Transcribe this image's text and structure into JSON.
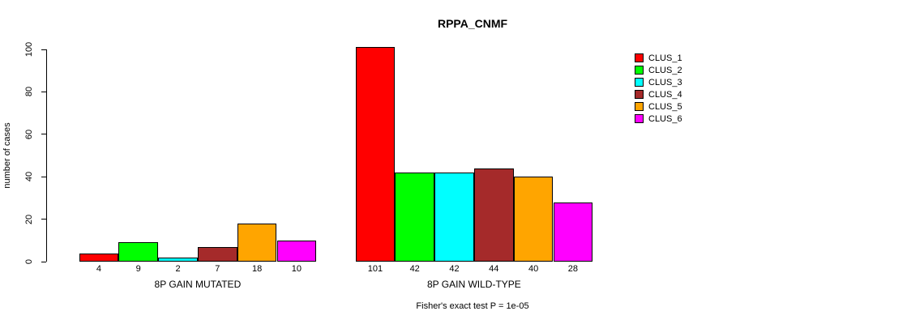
{
  "title": "RPPA_CNMF",
  "chart_data": {
    "type": "bar",
    "title": "RPPA_CNMF",
    "ylabel": "number of cases",
    "xlabel": "",
    "ylim": [
      0,
      100
    ],
    "yticks": [
      0,
      20,
      40,
      60,
      80,
      100
    ],
    "grid": false,
    "legend_position": "right",
    "categories": [
      "8P GAIN MUTATED",
      "8P GAIN WILD-TYPE"
    ],
    "series": [
      {
        "name": "CLUS_1",
        "color": "#ff0000",
        "values": [
          4,
          101
        ]
      },
      {
        "name": "CLUS_2",
        "color": "#00ff00",
        "values": [
          9,
          42
        ]
      },
      {
        "name": "CLUS_3",
        "color": "#00ffff",
        "values": [
          2,
          42
        ]
      },
      {
        "name": "CLUS_4",
        "color": "#a52a2a",
        "values": [
          7,
          44
        ]
      },
      {
        "name": "CLUS_5",
        "color": "#ffa500",
        "values": [
          18,
          40
        ]
      },
      {
        "name": "CLUS_6",
        "color": "#ff00ff",
        "values": [
          10,
          28
        ]
      }
    ],
    "bar_value_labels": {
      "8P GAIN MUTATED": [
        4,
        9,
        2,
        7,
        18,
        10
      ],
      "8P GAIN WILD-TYPE": [
        101,
        42,
        42,
        44,
        40,
        28
      ]
    },
    "annotation": "Fisher's exact test P = 1e-05"
  }
}
